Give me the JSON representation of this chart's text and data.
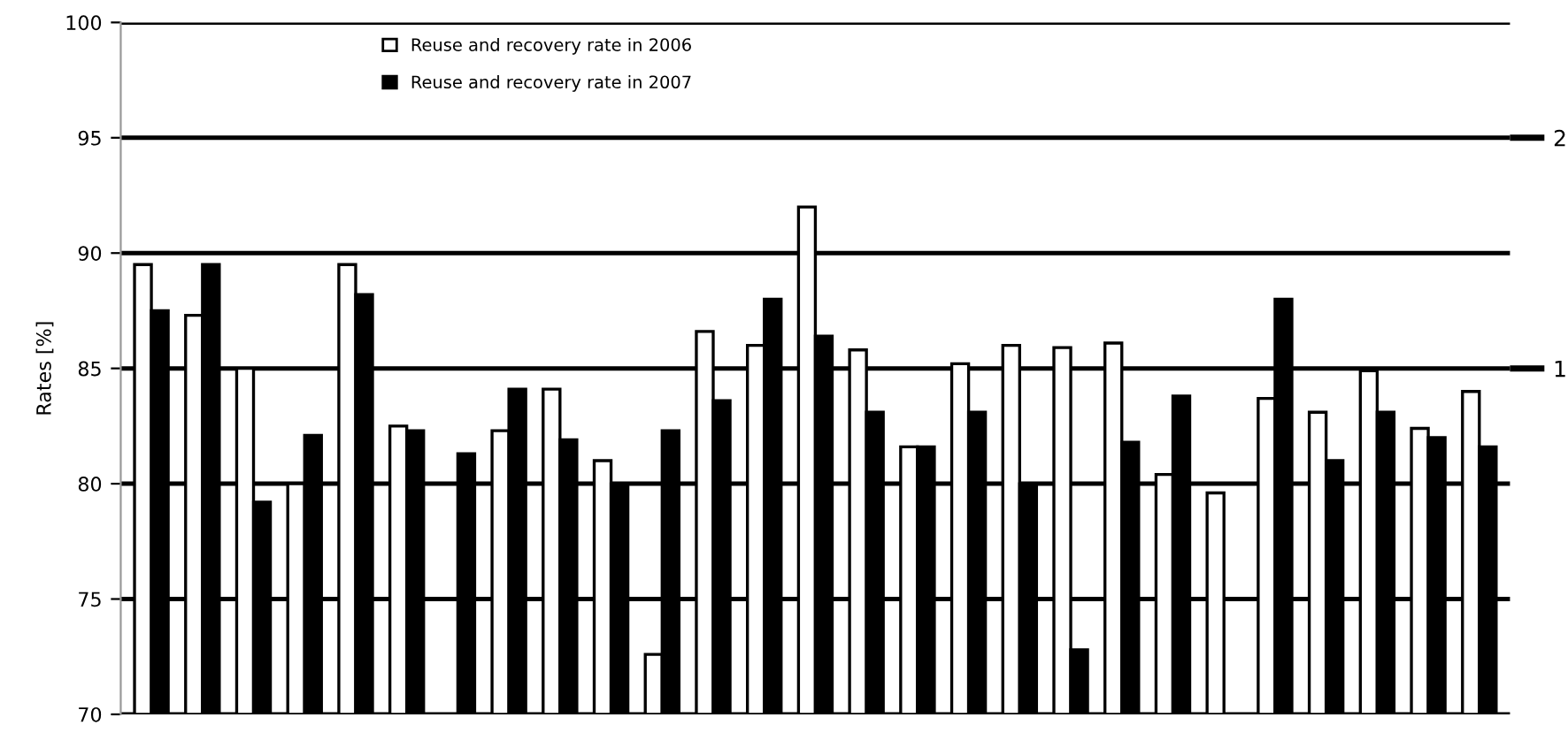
{
  "chart_data": {
    "type": "bar",
    "ylabel": "Rates [%]",
    "categories": [
      null,
      null,
      null,
      null,
      null,
      null,
      null,
      null,
      null,
      null,
      null,
      null,
      null,
      null,
      null,
      null,
      null,
      null,
      null,
      null,
      null,
      null,
      null,
      null,
      null,
      null,
      null
    ],
    "series": [
      {
        "name": "Reuse and recovery rate in 2006",
        "color": "#ffffff",
        "values": [
          89.5,
          87.3,
          85.0,
          80.0,
          89.5,
          82.5,
          null,
          82.3,
          84.1,
          81.0,
          72.6,
          86.6,
          86.0,
          92.0,
          85.8,
          81.6,
          85.2,
          86.0,
          85.9,
          86.1,
          80.4,
          79.6,
          83.7,
          83.1,
          84.9,
          82.4,
          84.0
        ]
      },
      {
        "name": "Reuse and recovery rate in 2007",
        "color": "#000000",
        "values": [
          87.5,
          89.5,
          79.2,
          82.1,
          88.2,
          82.3,
          81.3,
          84.1,
          81.9,
          80.0,
          82.3,
          83.6,
          88.0,
          86.4,
          83.1,
          81.6,
          83.1,
          80.0,
          72.8,
          81.8,
          83.8,
          null,
          88.0,
          81.0,
          83.1,
          82.0,
          81.6
        ]
      }
    ],
    "ylim": [
      70,
      100
    ],
    "yticks": [
      70,
      75,
      80,
      85,
      90,
      95,
      100
    ],
    "grid": "y",
    "legend": "top",
    "y2lim": [
      -0.5,
      2.5
    ],
    "y2ticks": [
      2,
      1
    ]
  }
}
